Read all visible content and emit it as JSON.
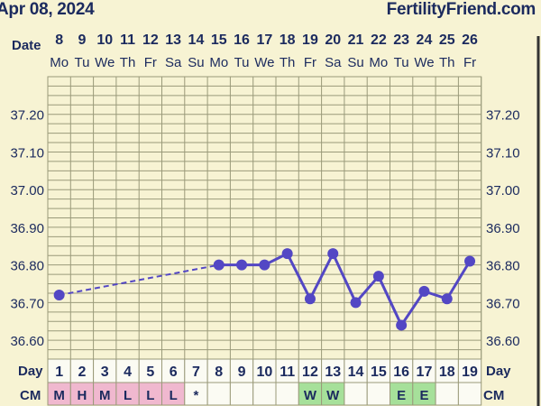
{
  "header": {
    "date": "Apr 08, 2024",
    "site": "FertilityFriend.com"
  },
  "labels": {
    "date_row": "Date",
    "day_row": "Day",
    "cm_row": "CM"
  },
  "colors": {
    "line": "#5347c4",
    "grid": "#9a9a7a",
    "plot_bg": "#f7f3d3",
    "cell_pink": "#f0b8cf",
    "cell_green": "#a6e09a",
    "cell_white": "#fbfbf3",
    "text": "#1b2a5e"
  },
  "chart_data": {
    "type": "line",
    "dates": [
      "8",
      "9",
      "10",
      "11",
      "12",
      "13",
      "14",
      "15",
      "16",
      "17",
      "18",
      "19",
      "20",
      "21",
      "22",
      "23",
      "24",
      "25",
      "26"
    ],
    "weekdays": [
      "Mo",
      "Tu",
      "We",
      "Th",
      "Fr",
      "Sa",
      "Su",
      "Mo",
      "Tu",
      "We",
      "Th",
      "Fr",
      "Sa",
      "Su",
      "Mo",
      "Tu",
      "We",
      "Th",
      "Fr"
    ],
    "cycle_days": [
      "1",
      "2",
      "3",
      "4",
      "5",
      "6",
      "7",
      "8",
      "9",
      "10",
      "11",
      "12",
      "13",
      "14",
      "15",
      "16",
      "17",
      "18",
      "19"
    ],
    "cm": [
      "M",
      "H",
      "M",
      "L",
      "L",
      "L",
      "*",
      "",
      "",
      "",
      "",
      "W",
      "W",
      "",
      "",
      "E",
      "E",
      "",
      ""
    ],
    "cm_color": [
      "pink",
      "pink",
      "pink",
      "pink",
      "pink",
      "pink",
      "white",
      "white",
      "white",
      "white",
      "white",
      "green",
      "green",
      "white",
      "white",
      "green",
      "green",
      "white",
      "white"
    ],
    "y_ticks": [
      "37.20",
      "37.10",
      "37.00",
      "36.90",
      "36.80",
      "36.70",
      "36.60"
    ],
    "ylim": [
      36.55,
      37.3
    ],
    "series": [
      {
        "values": [
          36.72,
          null,
          null,
          null,
          null,
          null,
          null,
          36.8,
          36.8,
          36.8,
          36.83,
          36.71,
          36.83,
          36.7,
          36.77,
          36.64,
          36.73,
          36.71,
          36.81
        ],
        "dashed_gap_from_index": 0,
        "dashed_gap_to_index": 7
      }
    ]
  }
}
